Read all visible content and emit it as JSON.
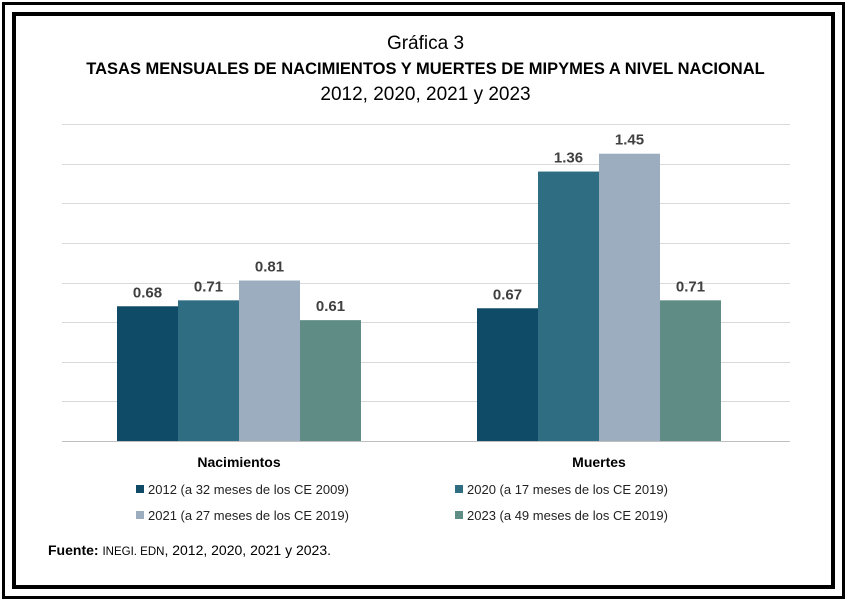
{
  "header": {
    "line1": "Gráfica 3",
    "line2": "TASAS MENSUALES DE NACIMIENTOS Y MUERTES DE MIPYMES A NIVEL NACIONAL",
    "line3": "2012, 2020, 2021 y 2023"
  },
  "source": {
    "label": "Fuente:",
    "org": "INEGI. EDN",
    "years": ", 2012, 2020, 2021 y 2023."
  },
  "chart_data": {
    "type": "bar",
    "categories": [
      "Nacimientos",
      "Muertes"
    ],
    "series": [
      {
        "name": "2012 (a 32 meses de los CE 2009)",
        "values": [
          0.68,
          0.67
        ],
        "color": "#0f4a66"
      },
      {
        "name": "2020 (a 17 meses de los CE 2019)",
        "values": [
          0.71,
          1.36
        ],
        "color": "#2f6d82"
      },
      {
        "name": "2021 (a 27 meses de los CE 2019)",
        "values": [
          0.81,
          1.45
        ],
        "color": "#9cadbf"
      },
      {
        "name": "2023 (a 49 meses de los CE 2019)",
        "values": [
          0.61,
          0.71
        ],
        "color": "#5f8c84"
      }
    ],
    "ylim": [
      0,
      1.6
    ],
    "grid": true,
    "legend_position": "bottom",
    "value_labels": true
  }
}
